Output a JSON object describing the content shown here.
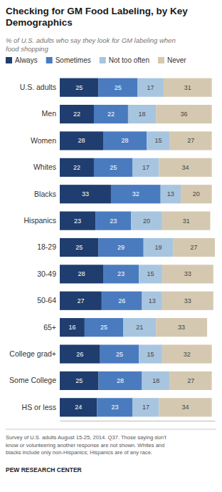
{
  "chart_data": {
    "type": "bar",
    "orientation": "horizontal",
    "stacked": true,
    "title": "Checking for GM Food Labeling, by Key\nDemographics",
    "subtitle": "% of U.S. adults who say they look for GM labeling when\nfood shopping",
    "annotations": [
      "Survey of U.S. adults August 15-25, 2014. Q37.  Those saying don’t\nknow or volunteering another response are not shown. Whites and\nblacks include only non-Hispanics; Hispanics are of any race.",
      "PEW RESEARCH CENTER"
    ],
    "categories": [
      "U.S. adults",
      "Men",
      "Women",
      "Whites",
      "Blacks",
      "Hispanics",
      "18-29",
      "30-49",
      "50-64",
      "65+",
      "College grad+",
      "Some College",
      "HS or less"
    ],
    "series": [
      {
        "name": "Always",
        "color": "#1f3d6e",
        "values": [
          25,
          22,
          28,
          22,
          33,
          23,
          25,
          28,
          27,
          16,
          26,
          25,
          24
        ]
      },
      {
        "name": "Sometimes",
        "color": "#4a7bbf",
        "values": [
          25,
          22,
          28,
          25,
          32,
          23,
          29,
          23,
          26,
          25,
          25,
          28,
          23
        ]
      },
      {
        "name": "Not too often",
        "color": "#a8c5e0",
        "values": [
          17,
          18,
          15,
          17,
          13,
          20,
          19,
          15,
          13,
          21,
          15,
          18,
          17
        ]
      },
      {
        "name": "Never",
        "color": "#d4c9b0",
        "values": [
          31,
          36,
          27,
          34,
          20,
          31,
          27,
          33,
          33,
          33,
          32,
          27,
          34
        ]
      }
    ],
    "xlim": [
      0,
      100
    ],
    "grid": false,
    "legend": "top",
    "data_labels": true,
    "tick_labels": "y"
  }
}
